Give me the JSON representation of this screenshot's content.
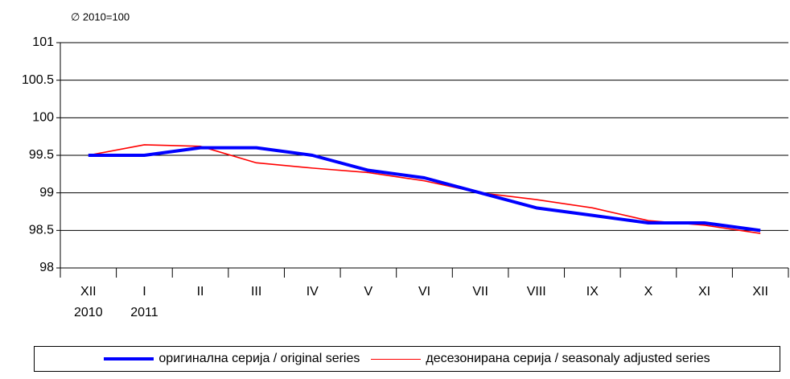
{
  "chart_data": {
    "type": "line",
    "subtitle": "∅ 2010=100",
    "categories": [
      "XII\n2010",
      "I\n2011",
      "II",
      "III",
      "IV",
      "V",
      "VI",
      "VII",
      "VIII",
      "IX",
      "X",
      "XI",
      "XII"
    ],
    "series": [
      {
        "name": "оригинална серија / original series",
        "color": "#0000ff",
        "width": 4,
        "values": [
          99.5,
          99.5,
          99.6,
          99.6,
          99.5,
          99.3,
          99.2,
          99.0,
          98.8,
          98.7,
          98.6,
          98.6,
          98.5
        ]
      },
      {
        "name": "десезонирана серија / seasonaly adjusted series",
        "color": "#ff0000",
        "width": 1.6,
        "values": [
          99.5,
          99.64,
          99.62,
          99.4,
          99.33,
          99.27,
          99.16,
          99.0,
          98.91,
          98.8,
          98.63,
          98.57,
          98.46
        ]
      }
    ],
    "ylim": [
      98,
      101
    ],
    "yticks": [
      98,
      98.5,
      99,
      99.5,
      100,
      100.5,
      101
    ],
    "grid": true,
    "legend": "bottom"
  }
}
